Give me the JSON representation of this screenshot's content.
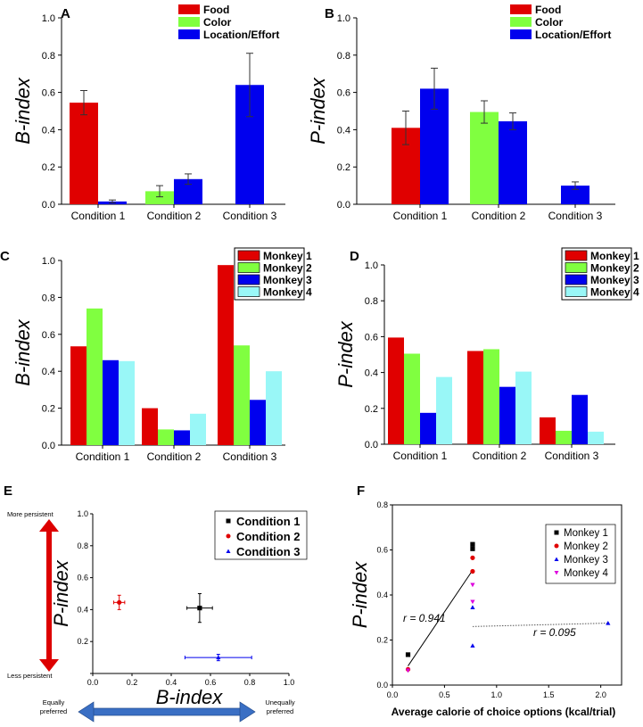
{
  "panels": [
    {
      "letter": "A",
      "chart_data": {
        "type": "bar",
        "categories": [
          "Condition 1",
          "Condition 2",
          "Condition 3"
        ],
        "series": [
          {
            "name": "Food",
            "color": "#e00000",
            "values": [
              0.545,
              null,
              null
            ],
            "errors": [
              0.065,
              null,
              null
            ]
          },
          {
            "name": "Color",
            "color": "#80ff40",
            "values": [
              null,
              0.07,
              null
            ],
            "errors": [
              null,
              0.03,
              null
            ]
          },
          {
            "name": "Location/Effort",
            "color": "#0000ee",
            "values": [
              0.015,
              0.135,
              0.64
            ],
            "errors": [
              0.008,
              0.028,
              0.17
            ]
          }
        ],
        "ylabel": "B-index",
        "ylim": [
          0,
          1.0
        ],
        "yticks": [
          "0.0",
          "0.2",
          "0.4",
          "0.6",
          "0.8",
          "1.0"
        ],
        "legend": "top-right"
      }
    },
    {
      "letter": "B",
      "chart_data": {
        "type": "bar",
        "categories": [
          "Condition 1",
          "Condition 2",
          "Condition 3"
        ],
        "series": [
          {
            "name": "Food",
            "color": "#e00000",
            "values": [
              0.41,
              null,
              null
            ],
            "errors": [
              0.09,
              null,
              null
            ]
          },
          {
            "name": "Color",
            "color": "#80ff40",
            "values": [
              null,
              0.495,
              null
            ],
            "errors": [
              null,
              0.06,
              null
            ]
          },
          {
            "name": "Location/Effort",
            "color": "#0000ee",
            "values": [
              0.62,
              0.445,
              0.1
            ],
            "errors": [
              0.11,
              0.045,
              0.02
            ]
          }
        ],
        "ylabel": "P-index",
        "ylim": [
          0,
          1.0
        ],
        "yticks": [
          "0.0",
          "0.2",
          "0.4",
          "0.6",
          "0.8",
          "1.0"
        ],
        "legend": "top-right"
      }
    },
    {
      "letter": "C",
      "chart_data": {
        "type": "bar",
        "categories": [
          "Condition 1",
          "Condition 2",
          "Condition 3"
        ],
        "series": [
          {
            "name": "Monkey 1",
            "color": "#e00000",
            "values": [
              0.535,
              0.2,
              0.975
            ]
          },
          {
            "name": "Monkey 2",
            "color": "#80ff40",
            "values": [
              0.74,
              0.085,
              0.54
            ]
          },
          {
            "name": "Monkey 3",
            "color": "#0000ee",
            "values": [
              0.46,
              0.08,
              0.245
            ]
          },
          {
            "name": "Monkey 4",
            "color": "#99f7f7",
            "values": [
              0.455,
              0.17,
              0.4
            ]
          }
        ],
        "ylabel": "B-index",
        "ylim": [
          0,
          1.0
        ],
        "yticks": [
          "0.0",
          "0.2",
          "0.4",
          "0.6",
          "0.8",
          "1.0"
        ],
        "legend": "top-right"
      }
    },
    {
      "letter": "D",
      "chart_data": {
        "type": "bar",
        "categories": [
          "Condition 1",
          "Condition 2",
          "Condition 3"
        ],
        "series": [
          {
            "name": "Monkey 1",
            "color": "#e00000",
            "values": [
              0.595,
              0.52,
              0.15
            ]
          },
          {
            "name": "Monkey 2",
            "color": "#80ff40",
            "values": [
              0.505,
              0.53,
              0.075
            ]
          },
          {
            "name": "Monkey 3",
            "color": "#0000ee",
            "values": [
              0.175,
              0.32,
              0.275
            ]
          },
          {
            "name": "Monkey 4",
            "color": "#99f7f7",
            "values": [
              0.375,
              0.405,
              0.07
            ]
          }
        ],
        "ylabel": "P-index",
        "ylim": [
          0,
          1.0
        ],
        "yticks": [
          "0.0",
          "0.2",
          "0.4",
          "0.6",
          "0.8",
          "1.0"
        ],
        "legend": "top-right"
      }
    },
    {
      "letter": "E",
      "chart_data": {
        "type": "scatter",
        "series": [
          {
            "name": "Condition 1",
            "color": "#000000",
            "marker": "square",
            "x": 0.545,
            "y": 0.41,
            "xerr": 0.065,
            "yerr": 0.09
          },
          {
            "name": "Condition 2",
            "color": "#e00000",
            "marker": "circle",
            "x": 0.135,
            "y": 0.445,
            "xerr": 0.028,
            "yerr": 0.045
          },
          {
            "name": "Condition 3",
            "color": "#0000ee",
            "marker": "triangle",
            "x": 0.64,
            "y": 0.1,
            "xerr": 0.17,
            "yerr": 0.02
          }
        ],
        "xlabel": "B-index",
        "ylabel": "P-index",
        "xlim": [
          0,
          1.0
        ],
        "ylim": [
          0,
          1.0
        ],
        "xticks": [
          "0.0",
          "0.2",
          "0.4",
          "0.6",
          "0.8",
          "1.0"
        ],
        "yticks": [
          "0.0",
          "0.2",
          "0.4",
          "0.6",
          "0.8",
          "1.0"
        ],
        "legend": "top-right",
        "annotations": {
          "more_persistent": "More persistent",
          "less_persistent": "Less persistent",
          "equally_preferred_1": "Equally",
          "equally_preferred_2": "preferred",
          "unequally_preferred_1": "Unequally",
          "unequally_preferred_2": "preferred"
        }
      }
    },
    {
      "letter": "F",
      "chart_data": {
        "type": "scatter",
        "series": [
          {
            "name": "Monkey 1",
            "color": "#000000",
            "marker": "square",
            "points": [
              [
                0.15,
                0.135
              ],
              [
                0.77,
                0.625
              ],
              [
                0.77,
                0.605
              ]
            ]
          },
          {
            "name": "Monkey 2",
            "color": "#e00000",
            "marker": "circle",
            "points": [
              [
                0.15,
                0.07
              ],
              [
                0.77,
                0.565
              ],
              [
                0.77,
                0.505
              ]
            ]
          },
          {
            "name": "Monkey 3",
            "color": "#0000ee",
            "marker": "triangle",
            "points": [
              [
                0.77,
                0.345
              ],
              [
                0.77,
                0.175
              ],
              [
                2.07,
                0.275
              ]
            ]
          },
          {
            "name": "Monkey 4",
            "color": "#dd00dd",
            "marker": "triangle-down",
            "points": [
              [
                0.15,
                0.065
              ],
              [
                0.77,
                0.445
              ],
              [
                0.77,
                0.37
              ]
            ]
          }
        ],
        "fits": [
          {
            "label": "r = 0.941",
            "x": [
              0.15,
              0.77
            ],
            "y": [
              0.085,
              0.51
            ],
            "style": "solid"
          },
          {
            "label": "r = 0.095",
            "x": [
              0.77,
              2.07
            ],
            "y": [
              0.26,
              0.275
            ],
            "style": "dotted"
          }
        ],
        "xlabel": "Average calorie of choice options (kcal/trial)",
        "ylabel": "P-index",
        "xlim": [
          0,
          2.2
        ],
        "ylim": [
          0,
          0.8
        ],
        "xticks": [
          "0.0",
          "0.5",
          "1.0",
          "1.5",
          "2.0"
        ],
        "yticks": [
          "0.0",
          "0.2",
          "0.4",
          "0.6",
          "0.8"
        ],
        "legend": "top-right"
      }
    }
  ]
}
